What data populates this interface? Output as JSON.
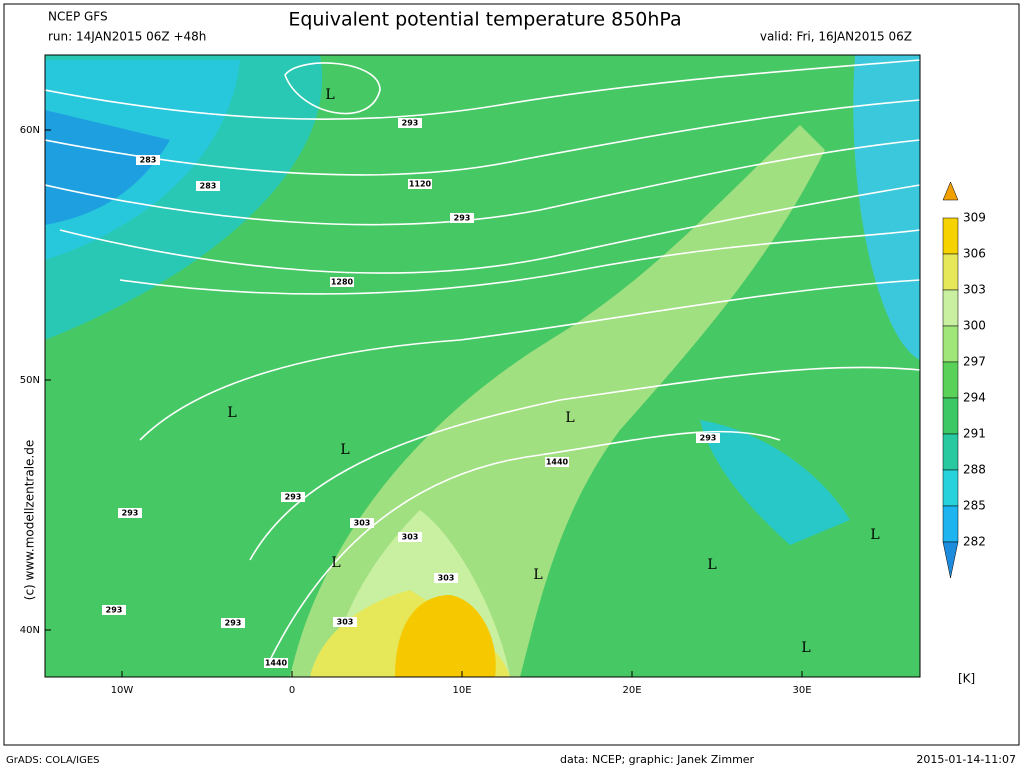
{
  "header": {
    "model": "NCEP GFS",
    "run": "run: 14JAN2015 06Z +48h",
    "title": "Equivalent potential temperature 850hPa",
    "valid": "valid: Fri, 16JAN2015 06Z"
  },
  "axes": {
    "lat_labels": [
      "60N",
      "50N",
      "40N"
    ],
    "lon_labels": [
      "10W",
      "0",
      "10E",
      "20E",
      "30E"
    ]
  },
  "colorbar": {
    "levels": [
      309,
      306,
      303,
      300,
      297,
      294,
      291,
      288,
      285,
      282
    ],
    "unit": "[K]",
    "colors": [
      "#f0a000",
      "#f5d200",
      "#e6e85a",
      "#c8f0a0",
      "#a0e678",
      "#5ad25a",
      "#3cc864",
      "#28c8a0",
      "#28d2dc",
      "#1eb4f0",
      "#1e8cdc"
    ]
  },
  "contour_labels": [
    "283",
    "283",
    "293",
    "1120",
    "293",
    "1280",
    "293",
    "1440",
    "293",
    "293",
    "303",
    "303",
    "303",
    "303",
    "293",
    "293",
    "1440"
  ],
  "low_marker": "L",
  "watermark": "(c) www.modellzentrale.de",
  "footer": {
    "software": "GrADS: COLA/IGES",
    "credit": "data: NCEP; graphic: Janek Zimmer",
    "timestamp": "2015-01-14-11:07"
  }
}
